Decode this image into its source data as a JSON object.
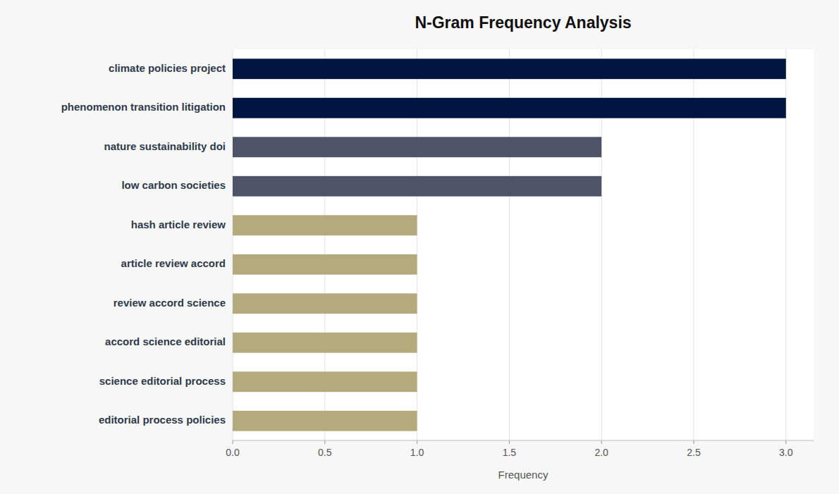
{
  "chart_data": {
    "type": "bar",
    "orientation": "horizontal",
    "title": "N-Gram Frequency Analysis",
    "xlabel": "Frequency",
    "categories": [
      "editorial process policies",
      "science editorial process",
      "accord science editorial",
      "review accord science",
      "article review accord",
      "hash article review",
      "low carbon societies",
      "nature sustainability doi",
      "phenomenon transition litigation",
      "climate policies project"
    ],
    "values": [
      1,
      1,
      1,
      1,
      1,
      1,
      2,
      2,
      3,
      3
    ],
    "colors": [
      "#b5aa7e",
      "#b5aa7e",
      "#b5aa7e",
      "#b5aa7e",
      "#b5aa7e",
      "#b5aa7e",
      "#4d5468",
      "#4d5468",
      "#001540",
      "#001540"
    ],
    "xlim": [
      0,
      3.15
    ],
    "xticks": [
      {
        "value": 0,
        "label": "0.0"
      },
      0.5,
      {
        "value": 1,
        "label": "1.0"
      },
      1.5,
      {
        "value": 2,
        "label": "2.0"
      },
      2.5,
      {
        "value": 3,
        "label": "3.0"
      }
    ],
    "grid": true
  }
}
